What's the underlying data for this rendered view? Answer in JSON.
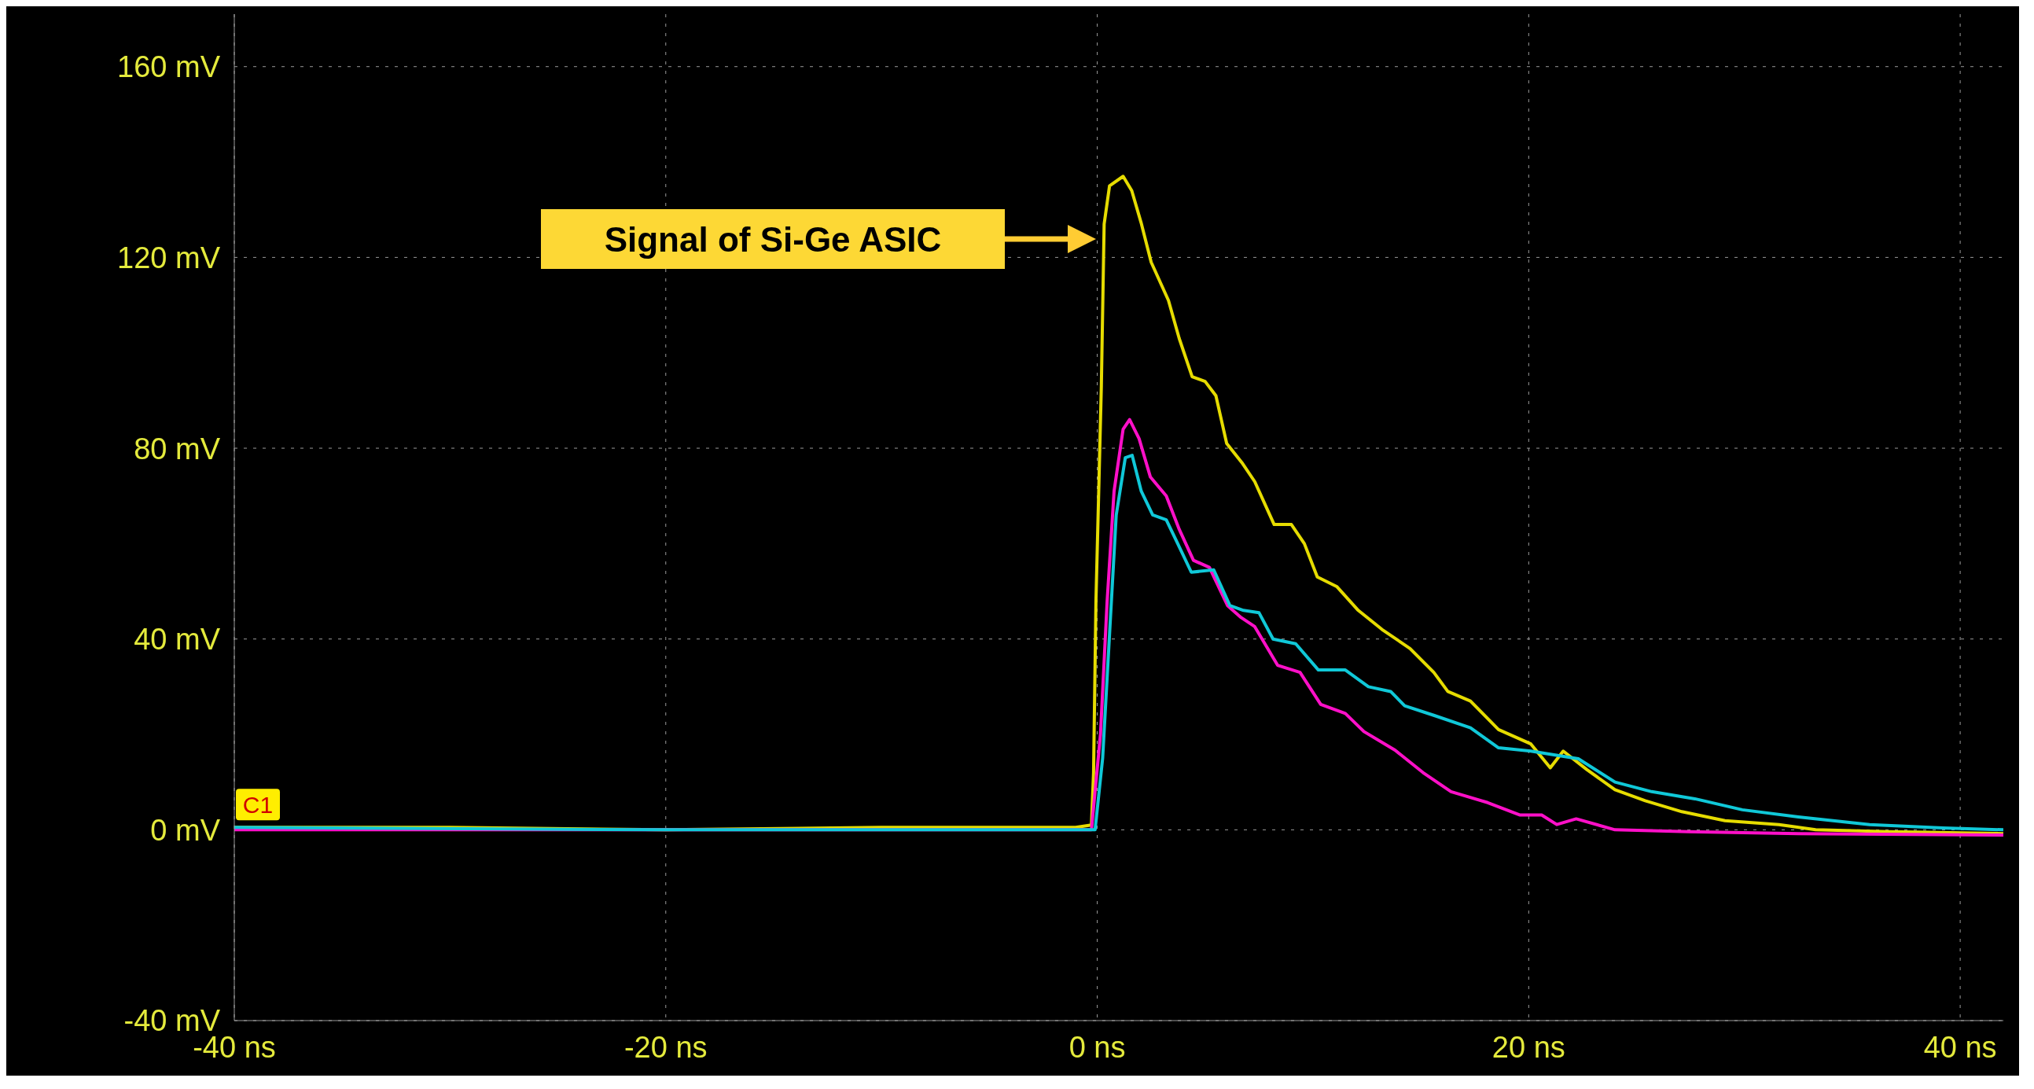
{
  "chart_data": {
    "type": "line",
    "xlim": [
      -40,
      42
    ],
    "ylim": [
      -40,
      171
    ],
    "xticks": [
      {
        "value": -40,
        "label": "-40 ns"
      },
      {
        "value": -20,
        "label": "-20 ns"
      },
      {
        "value": 0,
        "label": "0 ns"
      },
      {
        "value": 20,
        "label": "20 ns"
      },
      {
        "value": 40,
        "label": "40 ns"
      }
    ],
    "yticks": [
      {
        "value": -40,
        "label": "-40 mV"
      },
      {
        "value": 0,
        "label": "0 mV"
      },
      {
        "value": 40,
        "label": "40 mV"
      },
      {
        "value": 80,
        "label": "80 mV"
      },
      {
        "value": 120,
        "label": "120 mV"
      },
      {
        "value": 160,
        "label": "160 mV"
      }
    ],
    "grid": true,
    "marker": "none",
    "line_style": "solid",
    "series": [
      {
        "color": "#e6dc00",
        "x": [
          -40,
          -30,
          -20,
          -10,
          -1,
          -0.27,
          -0.17,
          -0.06,
          0.08,
          0.19,
          0.32,
          0.57,
          1.2,
          1.6,
          2.05,
          2.5,
          3.3,
          3.8,
          4.4,
          5.0,
          5.5,
          6.0,
          6.7,
          7.3,
          7.8,
          8.2,
          9.0,
          9.6,
          10.2,
          11.1,
          12.1,
          13.2,
          14.5,
          15.6,
          16.25,
          17.3,
          18.6,
          20.1,
          21,
          21.6,
          22.7,
          24,
          25.4,
          27.1,
          29.1,
          31.6,
          33.3,
          36.7,
          42
        ],
        "values": [
          0.5,
          0.5,
          0,
          0.5,
          0.5,
          1,
          12,
          48,
          73,
          93,
          127,
          135,
          137,
          134,
          127,
          119,
          111,
          103,
          95,
          94,
          91,
          81,
          77,
          73,
          68,
          64,
          64,
          60,
          53,
          51,
          46,
          42,
          38,
          33,
          29,
          27,
          21,
          18,
          13,
          16.5,
          12.6,
          8.4,
          6.1,
          3.8,
          1.9,
          1.1,
          0,
          -0.4,
          -0.8
        ]
      },
      {
        "color": "#ff10c8",
        "x": [
          -40,
          -20,
          -1,
          -0.27,
          0.15,
          0.46,
          0.78,
          1.2,
          1.5,
          1.94,
          2.46,
          3.2,
          3.8,
          4.46,
          5.2,
          6.04,
          6.67,
          7.3,
          8.36,
          9.4,
          10.36,
          11.5,
          12.36,
          13.8,
          15.1,
          16.4,
          18.1,
          19.6,
          20.6,
          21.3,
          22.2,
          24,
          27.4,
          32.5,
          42
        ],
        "values": [
          0,
          0,
          0,
          0,
          20,
          48,
          71,
          84,
          86,
          82,
          74,
          70,
          63,
          56.5,
          55,
          47,
          44.5,
          42.6,
          34.5,
          33,
          26.3,
          24.4,
          20.6,
          16.7,
          12,
          8,
          5.7,
          3.1,
          3.1,
          1.1,
          2.3,
          0,
          -0.4,
          -0.8,
          -1.1
        ]
      },
      {
        "color": "#10c8d8",
        "x": [
          -40,
          -20,
          -1,
          -0.1,
          0.25,
          0.57,
          0.88,
          1.3,
          1.62,
          2.04,
          2.57,
          3.2,
          3.73,
          4.36,
          5.4,
          6.15,
          6.78,
          7.5,
          8.15,
          9.2,
          10.25,
          11.5,
          12.57,
          13.6,
          14.25,
          15.6,
          17.3,
          18.6,
          20.1,
          22.3,
          24,
          25.7,
          27.7,
          29.9,
          32.5,
          35.8,
          39.2,
          42
        ],
        "values": [
          0.5,
          0,
          0,
          0,
          15,
          41,
          66,
          78,
          78.5,
          71,
          66,
          65,
          60,
          54,
          54.5,
          47,
          46,
          45.5,
          40,
          39,
          33.5,
          33.5,
          30,
          29,
          26,
          24,
          21.4,
          17.2,
          16.5,
          14.9,
          10,
          8,
          6.5,
          4.2,
          2.7,
          1.1,
          0.4,
          0
        ]
      }
    ],
    "annotations": [
      "Signal of Si-Ge ASIC",
      {
        "text": "C1",
        "x": -40,
        "y": 0
      }
    ]
  }
}
